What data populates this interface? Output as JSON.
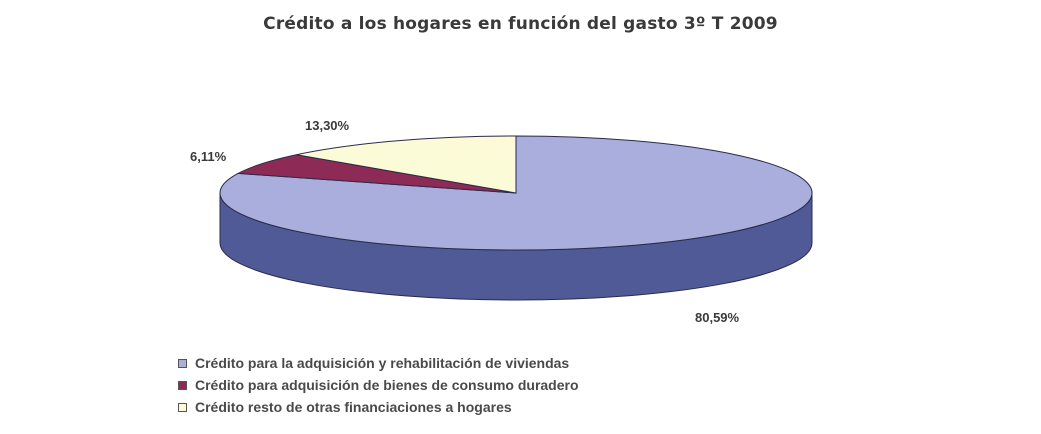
{
  "chart_data": {
    "type": "pie",
    "title": "Crédito a los hogares en función del gasto 3º T 2009",
    "categories": [
      "Crédito para la adquisición y rehabilitación de viviendas",
      "Crédito para adquisición de bienes de consumo duradero",
      "Crédito resto de otras financiaciones a hogares"
    ],
    "values": [
      80.59,
      6.11,
      13.3
    ],
    "data_labels": [
      "80,59%",
      "6,11%",
      "13,30%"
    ],
    "colors": [
      "#a9aedc",
      "#8e2a56",
      "#fbfbd8"
    ],
    "side_colors": [
      "#505a96",
      "#5e1a38",
      "#c8c8a0"
    ],
    "legend_position": "bottom",
    "three_d": true
  }
}
